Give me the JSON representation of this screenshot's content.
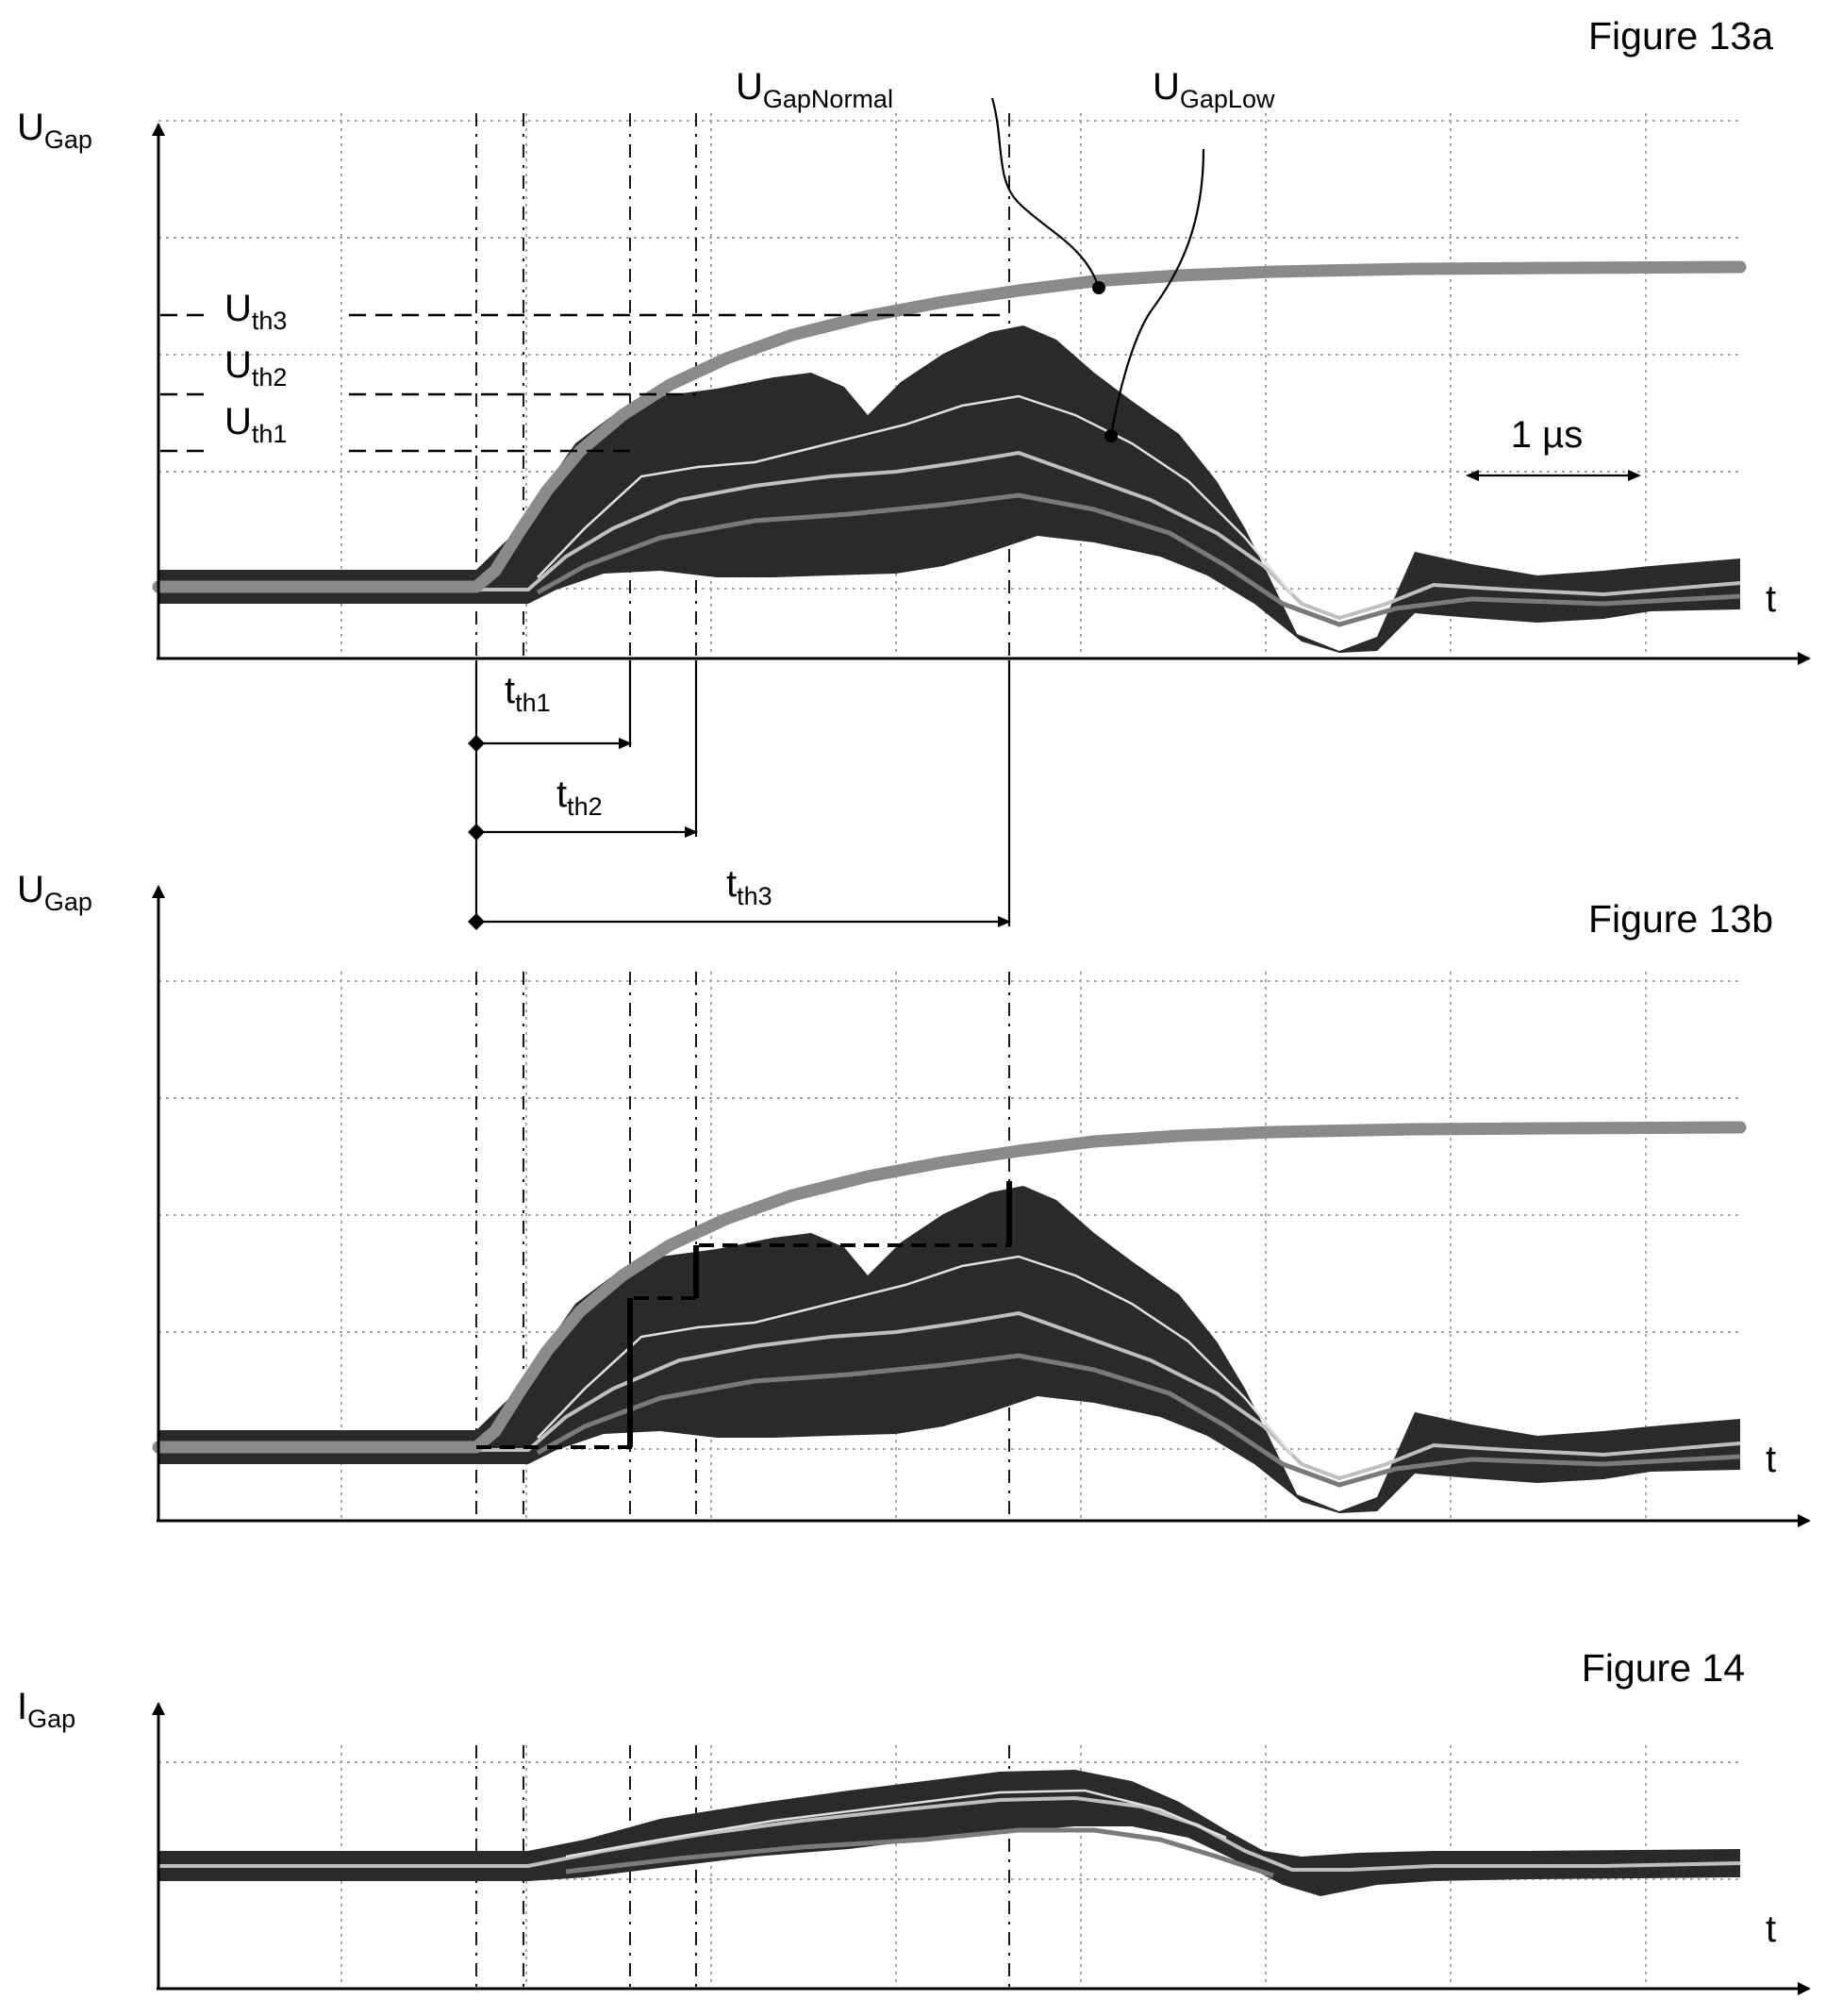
{
  "figures": {
    "fig13a": {
      "title": "Figure 13a",
      "y_axis_label": "U",
      "y_axis_sub": "Gap",
      "x_axis_label": "t"
    },
    "fig13b": {
      "title": "Figure 13b",
      "y_axis_label": "U",
      "y_axis_sub": "Gap",
      "x_axis_label": "t"
    },
    "fig14": {
      "title": "Figure 14",
      "y_axis_label": "I",
      "y_axis_sub": "Gap",
      "x_axis_label": "t"
    }
  },
  "annotations": {
    "normal_curve": {
      "main": "U",
      "sub": "GapNormal"
    },
    "low_curve": {
      "main": "U",
      "sub": "GapLow"
    },
    "scale_bar": "1 µs"
  },
  "thresholds": [
    {
      "main": "U",
      "sub": "th3"
    },
    {
      "main": "U",
      "sub": "th2"
    },
    {
      "main": "U",
      "sub": "th1"
    }
  ],
  "time_thresholds": [
    {
      "main": "t",
      "sub": "th1"
    },
    {
      "main": "t",
      "sub": "th2"
    },
    {
      "main": "t",
      "sub": "th3"
    }
  ],
  "colors": {
    "normal_trace": "#8a8a8a",
    "low_trace_band": "#2a2a2a",
    "grid": "#a8a8a8",
    "axis": "#000000"
  }
}
